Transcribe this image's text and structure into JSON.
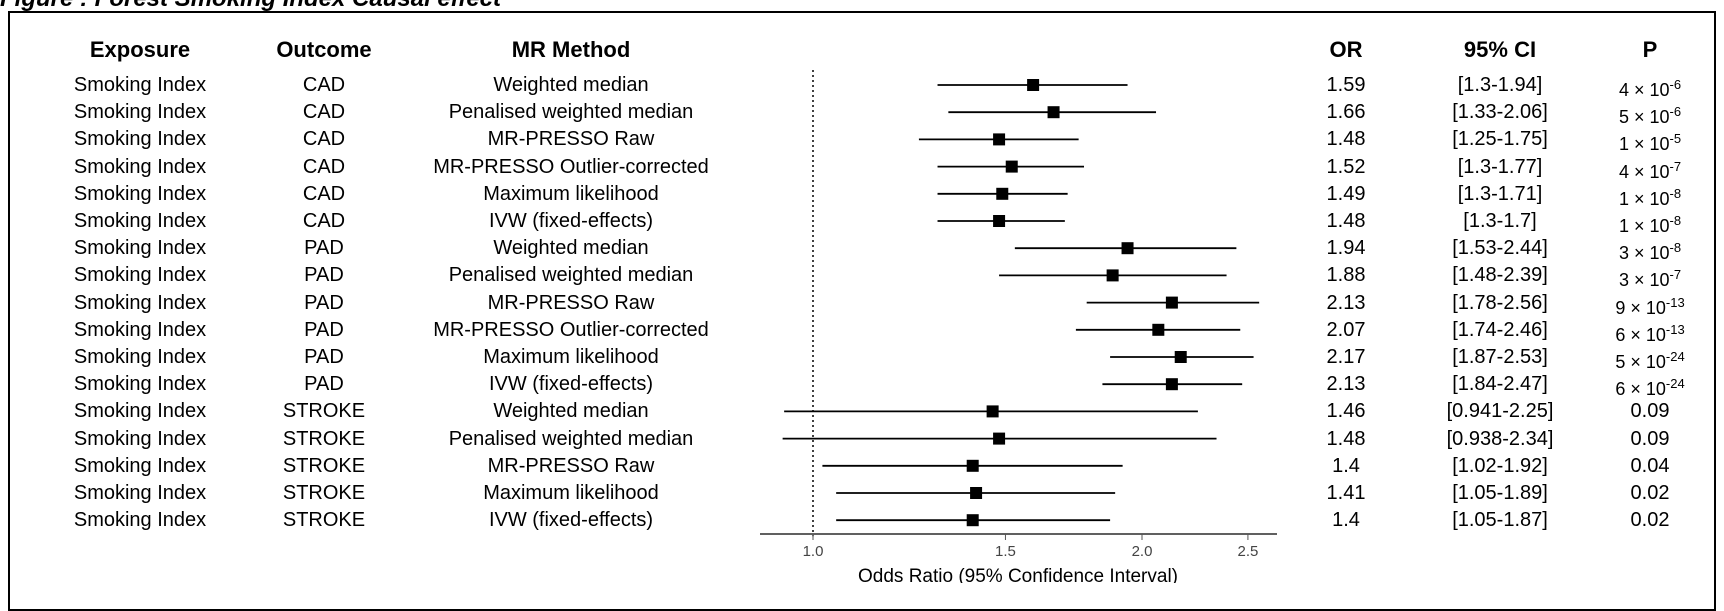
{
  "figure": {
    "title_fragment": "Figure    : Forest     Smoking Index     Causal effect        ",
    "column_headers": {
      "exposure": "Exposure",
      "outcome": "Outcome",
      "method": "MR Method",
      "or": "OR",
      "ci": "95% CI",
      "p": "P"
    }
  },
  "chart_data": {
    "type": "forest",
    "xlabel": "Odds Ratio (95% Confidence Interval)",
    "x_ticks": [
      1.0,
      1.5,
      2.0,
      2.5
    ],
    "x_tick_labels": [
      "1.0",
      "1.5",
      "2.0",
      "2.5"
    ],
    "x_scale": "log",
    "xlim": [
      0.85,
      2.65
    ],
    "reference_line": 1.0,
    "rows": [
      {
        "exposure": "Smoking Index",
        "outcome": "CAD",
        "method": "Weighted median",
        "or": 1.59,
        "lo": 1.3,
        "hi": 1.94,
        "or_label": "1.59",
        "ci_label": "[1.3-1.94]",
        "p_mant": "4",
        "p_exp": "-6"
      },
      {
        "exposure": "Smoking Index",
        "outcome": "CAD",
        "method": "Penalised weighted median",
        "or": 1.66,
        "lo": 1.33,
        "hi": 2.06,
        "or_label": "1.66",
        "ci_label": "[1.33-2.06]",
        "p_mant": "5",
        "p_exp": "-6"
      },
      {
        "exposure": "Smoking Index",
        "outcome": "CAD",
        "method": "MR-PRESSO Raw",
        "or": 1.48,
        "lo": 1.25,
        "hi": 1.75,
        "or_label": "1.48",
        "ci_label": "[1.25-1.75]",
        "p_mant": "1",
        "p_exp": "-5"
      },
      {
        "exposure": "Smoking Index",
        "outcome": "CAD",
        "method": "MR-PRESSO Outlier-corrected",
        "or": 1.52,
        "lo": 1.3,
        "hi": 1.77,
        "or_label": "1.52",
        "ci_label": "[1.3-1.77]",
        "p_mant": "4",
        "p_exp": "-7"
      },
      {
        "exposure": "Smoking Index",
        "outcome": "CAD",
        "method": "Maximum likelihood",
        "or": 1.49,
        "lo": 1.3,
        "hi": 1.71,
        "or_label": "1.49",
        "ci_label": "[1.3-1.71]",
        "p_mant": "1",
        "p_exp": "-8"
      },
      {
        "exposure": "Smoking Index",
        "outcome": "CAD",
        "method": "IVW (fixed-effects)",
        "or": 1.48,
        "lo": 1.3,
        "hi": 1.7,
        "or_label": "1.48",
        "ci_label": "[1.3-1.7]",
        "p_mant": "1",
        "p_exp": "-8"
      },
      {
        "exposure": "Smoking Index",
        "outcome": "PAD",
        "method": "Weighted median",
        "or": 1.94,
        "lo": 1.53,
        "hi": 2.44,
        "or_label": "1.94",
        "ci_label": "[1.53-2.44]",
        "p_mant": "3",
        "p_exp": "-8"
      },
      {
        "exposure": "Smoking Index",
        "outcome": "PAD",
        "method": "Penalised weighted median",
        "or": 1.88,
        "lo": 1.48,
        "hi": 2.39,
        "or_label": "1.88",
        "ci_label": "[1.48-2.39]",
        "p_mant": "3",
        "p_exp": "-7"
      },
      {
        "exposure": "Smoking Index",
        "outcome": "PAD",
        "method": "MR-PRESSO Raw",
        "or": 2.13,
        "lo": 1.78,
        "hi": 2.56,
        "or_label": "2.13",
        "ci_label": "[1.78-2.56]",
        "p_mant": "9",
        "p_exp": "-13"
      },
      {
        "exposure": "Smoking Index",
        "outcome": "PAD",
        "method": "MR-PRESSO Outlier-corrected",
        "or": 2.07,
        "lo": 1.74,
        "hi": 2.46,
        "or_label": "2.07",
        "ci_label": "[1.74-2.46]",
        "p_mant": "6",
        "p_exp": "-13"
      },
      {
        "exposure": "Smoking Index",
        "outcome": "PAD",
        "method": "Maximum likelihood",
        "or": 2.17,
        "lo": 1.87,
        "hi": 2.53,
        "or_label": "2.17",
        "ci_label": "[1.87-2.53]",
        "p_mant": "5",
        "p_exp": "-24"
      },
      {
        "exposure": "Smoking Index",
        "outcome": "PAD",
        "method": "IVW (fixed-effects)",
        "or": 2.13,
        "lo": 1.84,
        "hi": 2.47,
        "or_label": "2.13",
        "ci_label": "[1.84-2.47]",
        "p_mant": "6",
        "p_exp": "-24"
      },
      {
        "exposure": "Smoking Index",
        "outcome": "STROKE",
        "method": "Weighted median",
        "or": 1.46,
        "lo": 0.941,
        "hi": 2.25,
        "or_label": "1.46",
        "ci_label": "[0.941-2.25]",
        "p_text": "0.09"
      },
      {
        "exposure": "Smoking Index",
        "outcome": "STROKE",
        "method": "Penalised weighted median",
        "or": 1.48,
        "lo": 0.938,
        "hi": 2.34,
        "or_label": "1.48",
        "ci_label": "[0.938-2.34]",
        "p_text": "0.09"
      },
      {
        "exposure": "Smoking Index",
        "outcome": "STROKE",
        "method": "MR-PRESSO Raw",
        "or": 1.4,
        "lo": 1.02,
        "hi": 1.92,
        "or_label": "1.4",
        "ci_label": "[1.02-1.92]",
        "p_text": "0.04"
      },
      {
        "exposure": "Smoking Index",
        "outcome": "STROKE",
        "method": "Maximum likelihood",
        "or": 1.41,
        "lo": 1.05,
        "hi": 1.89,
        "or_label": "1.41",
        "ci_label": "[1.05-1.89]",
        "p_text": "0.02"
      },
      {
        "exposure": "Smoking Index",
        "outcome": "STROKE",
        "method": "IVW (fixed-effects)",
        "or": 1.4,
        "lo": 1.05,
        "hi": 1.87,
        "or_label": "1.4",
        "ci_label": "[1.05-1.87]",
        "p_text": "0.02"
      }
    ]
  }
}
